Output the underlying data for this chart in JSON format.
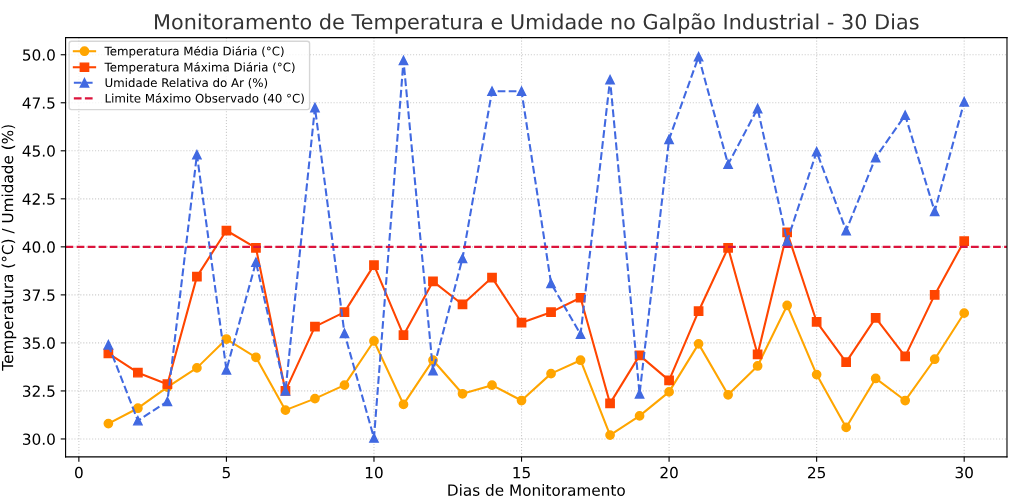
{
  "chart_data": {
    "type": "line",
    "title": "Monitoramento de Temperatura e Umidade no Galpão Industrial - 30 Dias",
    "xlabel": "Dias de Monitoramento",
    "ylabel": "Temperatura (°C) / Umidade (%)",
    "x": [
      1,
      2,
      3,
      4,
      5,
      6,
      7,
      8,
      9,
      10,
      11,
      12,
      13,
      14,
      15,
      16,
      17,
      18,
      19,
      20,
      21,
      22,
      23,
      24,
      25,
      26,
      27,
      28,
      29,
      30
    ],
    "series": [
      {
        "name": "Temperatura Média Diária (°C)",
        "color": "#ffa500",
        "marker": "circle",
        "line_style": "solid",
        "values": [
          30.8,
          31.6,
          32.7,
          33.7,
          35.2,
          34.25,
          31.5,
          32.1,
          32.8,
          35.1,
          31.8,
          34.1,
          32.35,
          32.8,
          32.0,
          33.4,
          34.1,
          30.2,
          31.2,
          32.45,
          34.95,
          32.3,
          33.8,
          36.95,
          33.35,
          30.6,
          33.15,
          32.0,
          34.15,
          36.55
        ]
      },
      {
        "name": "Temperatura Máxima Diária (°C)",
        "color": "#ff4500",
        "marker": "square",
        "line_style": "solid",
        "values": [
          34.45,
          33.45,
          32.85,
          38.45,
          40.85,
          39.95,
          32.5,
          35.85,
          36.6,
          39.05,
          35.4,
          38.2,
          37.0,
          38.4,
          36.05,
          36.6,
          37.35,
          31.85,
          34.35,
          33.05,
          36.65,
          39.95,
          34.4,
          40.75,
          36.1,
          34.0,
          36.3,
          34.3,
          37.5,
          40.3
        ]
      },
      {
        "name": "Umidade Relativa do Ar (%)",
        "color": "#4169e1",
        "marker": "triangle",
        "line_style": "dashed",
        "values": [
          34.9,
          30.95,
          31.95,
          44.8,
          33.6,
          39.2,
          32.5,
          47.25,
          35.5,
          30.05,
          49.7,
          33.55,
          39.4,
          48.1,
          48.1,
          38.1,
          35.45,
          48.7,
          32.35,
          45.6,
          49.9,
          44.3,
          47.2,
          40.3,
          44.95,
          40.85,
          44.65,
          46.85,
          41.85,
          47.55
        ]
      }
    ],
    "ref_lines": [
      {
        "axis": "y",
        "value": 40,
        "label": "Limite Máximo Observado (40 °C)",
        "color": "#dc143c",
        "line_style": "dashed"
      }
    ],
    "xlim": [
      -0.45,
      31.45
    ],
    "xticks": [
      0,
      5,
      10,
      15,
      20,
      25,
      30
    ],
    "ylim": [
      29.07,
      50.89
    ],
    "yticks": [
      {
        "value": 30,
        "label": "30.0"
      },
      {
        "value": 32.5,
        "label": "32.5"
      },
      {
        "value": 35,
        "label": "35.0"
      },
      {
        "value": 37.5,
        "label": "37.5"
      },
      {
        "value": 40,
        "label": "40.0"
      },
      {
        "value": 42.5,
        "label": "42.5"
      },
      {
        "value": 45,
        "label": "45.0"
      },
      {
        "value": 47.5,
        "label": "47.5"
      },
      {
        "value": 50,
        "label": "50.0"
      }
    ],
    "grid": true,
    "legend": "top left"
  }
}
